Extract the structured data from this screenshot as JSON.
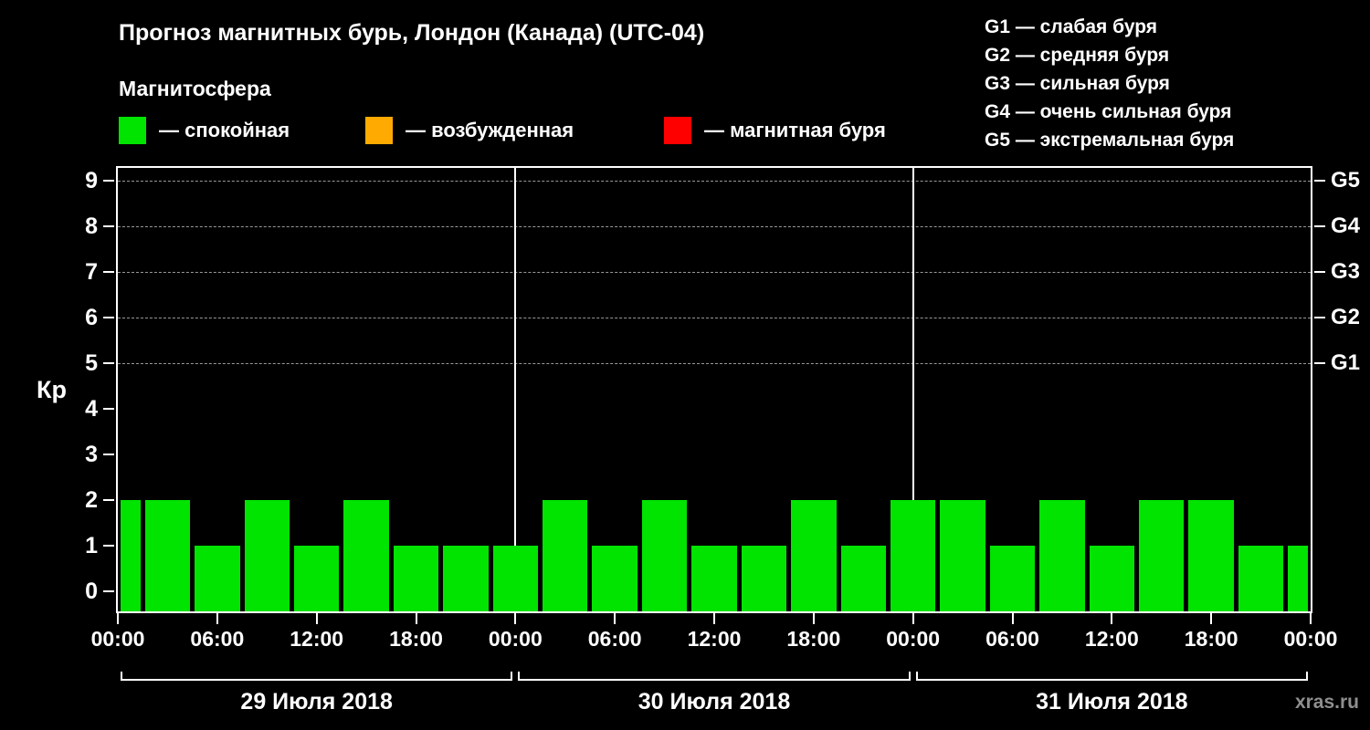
{
  "title": "Прогноз магнитных бурь, Лондон (Канада) (UTC-04)",
  "subtitle": "Магнитосфера",
  "legend": {
    "items": [
      {
        "label": "— спокойная",
        "color": "#00e400"
      },
      {
        "label": "— возбужденная",
        "color": "#ffaa00"
      },
      {
        "label": "— магнитная буря",
        "color": "#ff0000"
      }
    ]
  },
  "g_legend": [
    "G1 — слабая буря",
    "G2 — средняя буря",
    "G3 — сильная буря",
    "G4 — очень сильная буря",
    "G5 — экстремальная буря"
  ],
  "watermark": "xras.ru",
  "chart_data": {
    "type": "bar",
    "title": "Прогноз магнитных бурь, Лондон (Канада) (UTC-04)",
    "ylabel": "Кр",
    "ylim": [
      0,
      9.5
    ],
    "y_ticks": [
      0,
      1,
      2,
      3,
      4,
      5,
      6,
      7,
      8,
      9
    ],
    "right_axis": [
      {
        "kp": 5,
        "label": "G1"
      },
      {
        "kp": 6,
        "label": "G2"
      },
      {
        "kp": 7,
        "label": "G3"
      },
      {
        "kp": 8,
        "label": "G4"
      },
      {
        "kp": 9,
        "label": "G5"
      }
    ],
    "gridlines_kp": [
      5,
      6,
      7,
      8,
      9
    ],
    "grid": "dashed-horizontal",
    "bar_color": "#00e400",
    "x_hours_span": 72,
    "bar_interval_hours": 3,
    "bar_half_width_hours": 1.5,
    "values": [
      2,
      2,
      1,
      2,
      1,
      2,
      1,
      1,
      1,
      2,
      1,
      2,
      1,
      1,
      2,
      1,
      2,
      2,
      1,
      2,
      1,
      2,
      2,
      1,
      1
    ],
    "x_tick_interval_hours": 6,
    "x_tick_labels": [
      "00:00",
      "06:00",
      "12:00",
      "18:00",
      "00:00",
      "06:00",
      "12:00",
      "18:00",
      "00:00",
      "06:00",
      "12:00",
      "18:00",
      "00:00"
    ],
    "day_separators_hours": [
      24,
      48
    ],
    "day_labels": [
      {
        "label": "29 Июля 2018",
        "start_hour": 0,
        "end_hour": 24
      },
      {
        "label": "30 Июля 2018",
        "start_hour": 24,
        "end_hour": 48
      },
      {
        "label": "31 Июля 2018",
        "start_hour": 48,
        "end_hour": 72
      }
    ]
  }
}
